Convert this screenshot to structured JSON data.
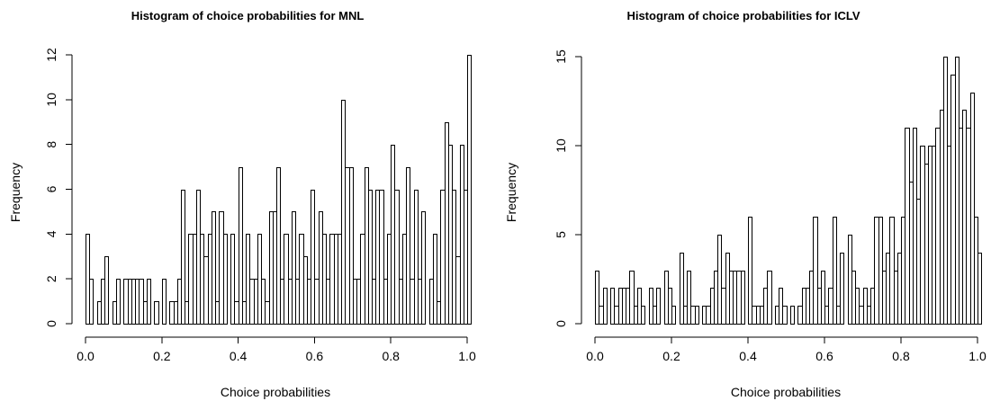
{
  "chart_data": [
    {
      "type": "bar",
      "title": "Histogram of choice probabilities for MNL",
      "xlabel": "Choice probabilities",
      "ylabel": "Frequency",
      "xlim": [
        0,
        1
      ],
      "ylim": [
        0,
        12
      ],
      "x_ticks": [
        "0.0",
        "0.2",
        "0.4",
        "0.6",
        "0.8",
        "1.0"
      ],
      "y_ticks": [
        "0",
        "2",
        "4",
        "6",
        "8",
        "10",
        "12"
      ],
      "bin_width": 0.01,
      "values": [
        4,
        2,
        0,
        1,
        2,
        3,
        0,
        1,
        2,
        0,
        2,
        2,
        2,
        2,
        2,
        1,
        2,
        0,
        1,
        0,
        2,
        0,
        1,
        1,
        2,
        6,
        1,
        4,
        4,
        6,
        4,
        3,
        4,
        5,
        1,
        5,
        4,
        0,
        4,
        1,
        7,
        1,
        4,
        2,
        2,
        4,
        2,
        1,
        5,
        5,
        7,
        2,
        4,
        2,
        5,
        2,
        4,
        3,
        2,
        6,
        2,
        5,
        4,
        2,
        4,
        4,
        4,
        10,
        7,
        7,
        2,
        2,
        4,
        7,
        6,
        2,
        6,
        6,
        2,
        4,
        8,
        6,
        2,
        4,
        7,
        2,
        6,
        2,
        5,
        0,
        2,
        4,
        1,
        6,
        9,
        8,
        6,
        3,
        8,
        6,
        12
      ]
    },
    {
      "type": "bar",
      "title": "Histogram of choice probabilities for ICLV",
      "xlabel": "Choice probabilities",
      "ylabel": "Frequency",
      "xlim": [
        0,
        1
      ],
      "ylim": [
        0,
        15
      ],
      "x_ticks": [
        "0.0",
        "0.2",
        "0.4",
        "0.6",
        "0.8",
        "1.0"
      ],
      "y_ticks": [
        "0",
        "5",
        "10",
        "15"
      ],
      "bin_width": 0.01,
      "values": [
        3,
        1,
        2,
        0,
        2,
        1,
        2,
        2,
        2,
        3,
        1,
        2,
        1,
        0,
        2,
        1,
        2,
        0,
        3,
        2,
        1,
        0,
        4,
        1,
        3,
        1,
        1,
        0,
        1,
        1,
        2,
        3,
        5,
        2,
        4,
        3,
        3,
        3,
        3,
        0,
        6,
        1,
        1,
        1,
        2,
        3,
        0,
        1,
        2,
        1,
        0,
        1,
        0,
        1,
        2,
        2,
        3,
        6,
        2,
        3,
        1,
        2,
        6,
        1,
        4,
        0,
        5,
        3,
        2,
        1,
        2,
        1,
        2,
        6,
        6,
        3,
        4,
        6,
        3,
        4,
        6,
        11,
        8,
        11,
        7,
        10,
        9,
        10,
        10,
        11,
        12,
        15,
        10,
        14,
        15,
        11,
        12,
        11,
        13,
        6,
        4
      ]
    }
  ]
}
